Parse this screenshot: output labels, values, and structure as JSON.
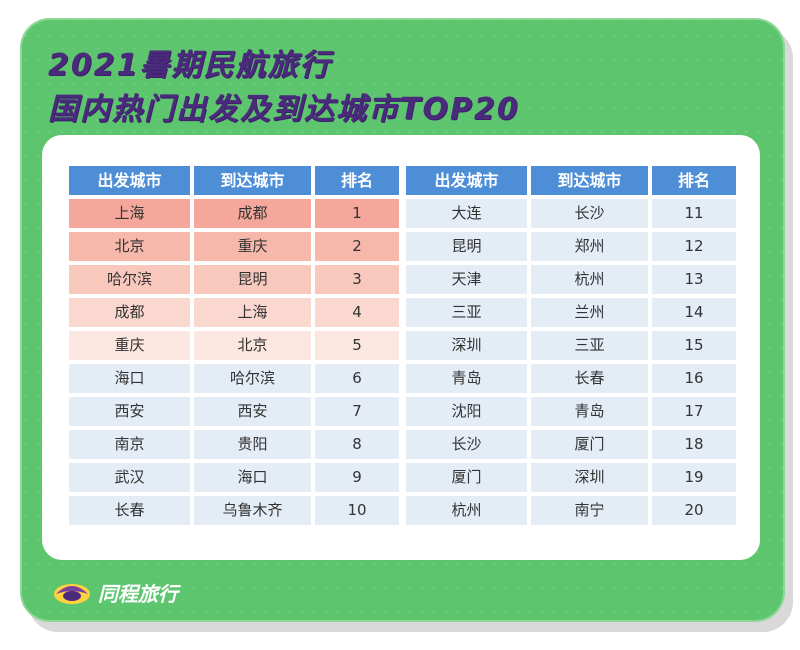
{
  "title_line1": "2021暑期民航旅行",
  "title_line2": "国内热门出发及到达城市TOP20",
  "headers": {
    "from": "出发城市",
    "to": "到达城市",
    "rank": "排名"
  },
  "left_rows": [
    {
      "from": "上海",
      "to": "成都",
      "rank": "1"
    },
    {
      "from": "北京",
      "to": "重庆",
      "rank": "2"
    },
    {
      "from": "哈尔滨",
      "to": "昆明",
      "rank": "3"
    },
    {
      "from": "成都",
      "to": "上海",
      "rank": "4"
    },
    {
      "from": "重庆",
      "to": "北京",
      "rank": "5"
    },
    {
      "from": "海口",
      "to": "哈尔滨",
      "rank": "6"
    },
    {
      "from": "西安",
      "to": "西安",
      "rank": "7"
    },
    {
      "from": "南京",
      "to": "贵阳",
      "rank": "8"
    },
    {
      "from": "武汉",
      "to": "海口",
      "rank": "9"
    },
    {
      "from": "长春",
      "to": "乌鲁木齐",
      "rank": "10"
    }
  ],
  "right_rows": [
    {
      "from": "大连",
      "to": "长沙",
      "rank": "11"
    },
    {
      "from": "昆明",
      "to": "郑州",
      "rank": "12"
    },
    {
      "from": "天津",
      "to": "杭州",
      "rank": "13"
    },
    {
      "from": "三亚",
      "to": "兰州",
      "rank": "14"
    },
    {
      "from": "深圳",
      "to": "三亚",
      "rank": "15"
    },
    {
      "from": "青岛",
      "to": "长春",
      "rank": "16"
    },
    {
      "from": "沈阳",
      "to": "青岛",
      "rank": "17"
    },
    {
      "from": "长沙",
      "to": "厦门",
      "rank": "18"
    },
    {
      "from": "厦门",
      "to": "深圳",
      "rank": "19"
    },
    {
      "from": "杭州",
      "to": "南宁",
      "rank": "20"
    }
  ],
  "brand": {
    "name": "同程旅行",
    "icon": "tongcheng-logo-icon"
  },
  "colors": {
    "background": "#5cc56e",
    "title": "#4a2a7a",
    "header": "#4e8ed6",
    "row_blue": "#e4ecf6",
    "top_pink": "#f4a79a"
  }
}
